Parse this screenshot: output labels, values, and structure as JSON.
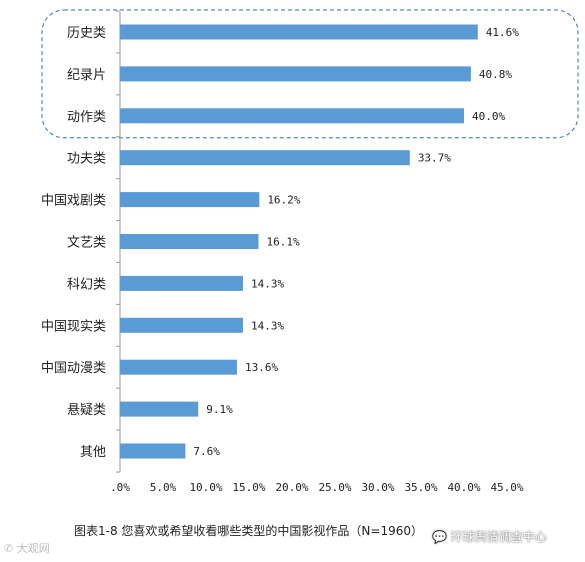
{
  "chart_data": {
    "type": "bar",
    "orientation": "horizontal",
    "categories": [
      "历史类",
      "纪录片",
      "动作类",
      "功夫类",
      "中国戏剧类",
      "文艺类",
      "科幻类",
      "中国现实类",
      "中国动漫类",
      "悬疑类",
      "其他"
    ],
    "values": [
      41.6,
      40.8,
      40.0,
      33.7,
      16.2,
      16.1,
      14.3,
      14.3,
      13.6,
      9.1,
      7.6
    ],
    "value_labels": [
      "41.6%",
      "40.8%",
      "40.0%",
      "33.7%",
      "16.2%",
      "16.1%",
      "14.3%",
      "14.3%",
      "13.6%",
      "9.1%",
      "7.6%"
    ],
    "xlim": [
      0,
      45
    ],
    "x_ticks": [
      ".0%",
      "5.0%",
      "10.0%",
      "15.0%",
      "20.0%",
      "25.0%",
      "30.0%",
      "35.0%",
      "40.0%",
      "45.0%"
    ],
    "grid": false,
    "bar_color": "#5b9bd5",
    "highlight_color": "#2e6fb0",
    "highlighted_categories": [
      "历史类",
      "纪录片",
      "动作类"
    ]
  },
  "caption": "图表1-8  您喜欢或希望收看哪些类型的中国影视作品（N=1960）",
  "watermark_left": "大观网",
  "watermark_right": "环球舆情调查中心",
  "watermark_icon": "wechat-bubble-icon"
}
